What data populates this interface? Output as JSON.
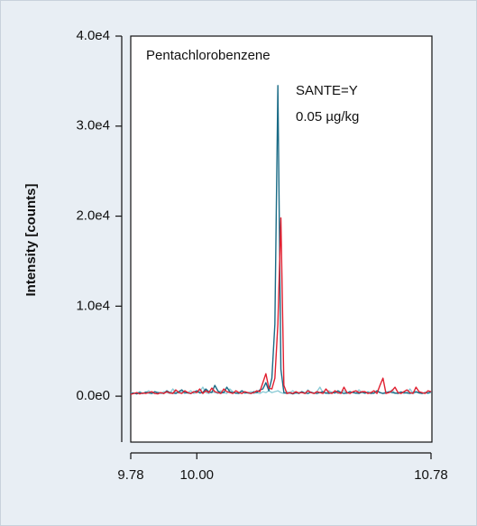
{
  "chart_data": {
    "type": "line",
    "ylabel": "Intensity [counts]",
    "annotations": [
      "Pentachlorobenzene",
      "SANTE=Y",
      "0.05 µg/kg"
    ],
    "x": [
      9.78,
      9.79,
      9.8,
      9.81,
      9.82,
      9.83,
      9.84,
      9.85,
      9.86,
      9.87,
      9.88,
      9.89,
      9.9,
      9.91,
      9.92,
      9.93,
      9.94,
      9.95,
      9.96,
      9.97,
      9.98,
      9.99,
      10.0,
      10.01,
      10.02,
      10.03,
      10.04,
      10.05,
      10.06,
      10.07,
      10.08,
      10.09,
      10.1,
      10.11,
      10.12,
      10.13,
      10.14,
      10.15,
      10.16,
      10.17,
      10.18,
      10.19,
      10.2,
      10.21,
      10.22,
      10.23,
      10.24,
      10.25,
      10.26,
      10.27,
      10.28,
      10.29,
      10.3,
      10.31,
      10.32,
      10.33,
      10.34,
      10.35,
      10.36,
      10.37,
      10.38,
      10.39,
      10.4,
      10.41,
      10.42,
      10.43,
      10.44,
      10.45,
      10.46,
      10.47,
      10.48,
      10.49,
      10.5,
      10.51,
      10.52,
      10.53,
      10.54,
      10.55,
      10.56,
      10.57,
      10.58,
      10.59,
      10.6,
      10.61,
      10.62,
      10.63,
      10.64,
      10.65,
      10.66,
      10.67,
      10.68,
      10.69,
      10.7,
      10.71,
      10.72,
      10.73,
      10.74,
      10.75,
      10.76,
      10.77,
      10.78
    ],
    "series": [
      {
        "color": "#8ccbd6",
        "values": [
          400,
          300,
          350,
          500,
          300,
          400,
          600,
          350,
          300,
          400,
          300,
          500,
          400,
          300,
          800,
          400,
          350,
          500,
          300,
          400,
          600,
          300,
          400,
          500,
          1000,
          400,
          300,
          500,
          400,
          300,
          600,
          400,
          300,
          800,
          500,
          300,
          400,
          600,
          300,
          400,
          500,
          300,
          400,
          300,
          500,
          400,
          600,
          400,
          500,
          600,
          400,
          300,
          500,
          400,
          600,
          300,
          400,
          500,
          300,
          700,
          400,
          300,
          500,
          1000,
          400,
          300,
          600,
          400,
          500,
          300,
          400,
          600,
          300,
          500,
          400,
          300,
          700,
          400,
          300,
          500,
          400,
          300,
          600,
          400,
          300,
          500,
          400,
          700,
          300,
          400,
          500,
          300,
          400,
          800,
          300,
          400,
          500,
          300,
          400,
          300,
          400
        ]
      },
      {
        "color": "#1a6b86",
        "values": [
          300,
          350,
          250,
          400,
          300,
          450,
          350,
          300,
          500,
          400,
          350,
          300,
          600,
          400,
          350,
          300,
          500,
          700,
          400,
          350,
          300,
          450,
          600,
          350,
          400,
          800,
          500,
          400,
          1200,
          600,
          350,
          400,
          1000,
          500,
          400,
          350,
          300,
          600,
          400,
          350,
          300,
          500,
          400,
          700,
          800,
          1500,
          600,
          2000,
          8000,
          34500,
          3000,
          400,
          300,
          350,
          250,
          400,
          300,
          500,
          350,
          300,
          450,
          350,
          300,
          400,
          500,
          350,
          300,
          400,
          350,
          600,
          400,
          300,
          350,
          500,
          400,
          350,
          300,
          450,
          350,
          400,
          300,
          350,
          600,
          400,
          300,
          350,
          500,
          400,
          350,
          300,
          450,
          400,
          350,
          300,
          400,
          500,
          350,
          300,
          400,
          350,
          500
        ]
      },
      {
        "color": "#e02030",
        "values": [
          200,
          300,
          400,
          250,
          350,
          300,
          400,
          500,
          300,
          250,
          400,
          300,
          500,
          350,
          300,
          700,
          400,
          300,
          600,
          400,
          300,
          500,
          400,
          800,
          300,
          600,
          400,
          900,
          500,
          400,
          300,
          800,
          500,
          400,
          300,
          600,
          400,
          300,
          500,
          400,
          300,
          400,
          600,
          500,
          1500,
          2500,
          900,
          800,
          2000,
          8000,
          19800,
          1200,
          300,
          400,
          300,
          500,
          350,
          400,
          300,
          600,
          400,
          300,
          500,
          400,
          300,
          800,
          400,
          300,
          600,
          400,
          300,
          1000,
          400,
          300,
          500,
          600,
          400,
          500,
          500,
          300,
          400,
          600,
          300,
          1200,
          2000,
          300,
          400,
          600,
          1000,
          400,
          300,
          500,
          700,
          400,
          300,
          1000,
          500,
          400,
          300,
          600,
          500
        ]
      }
    ],
    "xlim": [
      9.78,
      10.78
    ],
    "xticks": [
      9.78,
      {
        "value": 10.0,
        "label": "10.00"
      },
      10.78
    ],
    "ylim": [
      -5100,
      40000
    ],
    "yticks": [
      {
        "value": 0,
        "label": "0.0e0"
      },
      {
        "value": 10000,
        "label": "1.0e4"
      },
      {
        "value": 20000,
        "label": "2.0e4"
      },
      {
        "value": 30000,
        "label": "3.0e4"
      },
      {
        "value": 40000,
        "label": "4.0e4"
      }
    ]
  }
}
